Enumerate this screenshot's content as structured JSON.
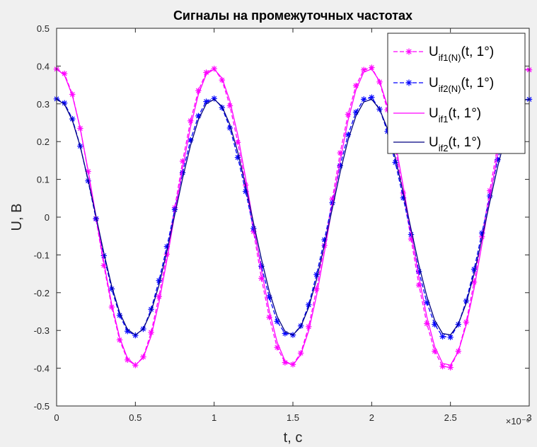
{
  "chart_data": {
    "type": "line",
    "title": "Сигналы на промежуточных частотах",
    "xlabel": "t, c",
    "ylabel": "U, B",
    "x_exponent_label": "×10⁻⁶",
    "xlim": [
      0,
      3
    ],
    "ylim": [
      -0.5,
      0.5
    ],
    "x_ticks": [
      "0",
      "0.5",
      "1",
      "1.5",
      "2",
      "2.5",
      "3"
    ],
    "x_tick_values": [
      0,
      0.5,
      1,
      1.5,
      2,
      2.5,
      3
    ],
    "y_ticks": [
      "0.5",
      "0.4",
      "0.3",
      "0.2",
      "0.1",
      "0",
      "-0.1",
      "-0.2",
      "-0.3",
      "-0.4",
      "-0.5"
    ],
    "y_tick_values": [
      0.5,
      0.4,
      0.3,
      0.2,
      0.1,
      0,
      -0.1,
      -0.2,
      -0.3,
      -0.4,
      -0.5
    ],
    "grid": false,
    "legend_position": "top-right",
    "colors": {
      "magenta": "#ff00ff",
      "blue": "#0000ff",
      "navy": "#000080",
      "axes_bg": "#ffffff",
      "figure_bg": "#f0f0f0"
    },
    "series": [
      {
        "legend_main": "U",
        "legend_sub": "if1(N)",
        "legend_tail": "(t, 1°)",
        "color": "#ff00ff",
        "line": "dashed",
        "marker": "asterisk",
        "x": [
          0,
          0.05,
          0.1,
          0.15,
          0.2,
          0.25,
          0.3,
          0.35,
          0.4,
          0.45,
          0.5,
          0.55,
          0.6,
          0.65,
          0.7,
          0.75,
          0.8,
          0.85,
          0.9,
          0.95,
          1,
          1.05,
          1.1,
          1.15,
          1.2,
          1.25,
          1.3,
          1.35,
          1.4,
          1.45,
          1.5,
          1.55,
          1.6,
          1.65,
          1.7,
          1.75,
          1.8,
          1.85,
          1.9,
          1.95,
          2,
          2.05,
          2.1,
          2.15,
          2.2,
          2.25,
          2.3,
          2.35,
          2.4,
          2.45,
          2.5,
          2.55,
          2.6,
          2.65,
          2.7,
          2.75,
          2.8,
          2.85,
          2.9,
          2.95,
          3
        ],
        "y": [
          0.392,
          0.38,
          0.325,
          0.235,
          0.121,
          -0.005,
          -0.128,
          -0.238,
          -0.325,
          -0.378,
          -0.392,
          -0.37,
          -0.305,
          -0.21,
          -0.098,
          0.025,
          0.148,
          0.255,
          0.335,
          0.383,
          0.393,
          0.363,
          0.295,
          0.198,
          0.085,
          -0.038,
          -0.162,
          -0.265,
          -0.345,
          -0.385,
          -0.39,
          -0.36,
          -0.29,
          -0.19,
          -0.075,
          0.048,
          0.17,
          0.272,
          0.348,
          0.39,
          0.396,
          0.358,
          0.284,
          0.181,
          0.064,
          -0.058,
          -0.18,
          -0.282,
          -0.355,
          -0.395,
          -0.398,
          -0.355,
          -0.278,
          -0.172,
          -0.052,
          0.07,
          0.19,
          0.29,
          0.36,
          0.388,
          0.39
        ]
      },
      {
        "legend_main": "U",
        "legend_sub": "if2(N)",
        "legend_tail": "(t, 1°)",
        "color": "#0000ff",
        "line": "dashed",
        "marker": "asterisk",
        "x": [
          0,
          0.05,
          0.1,
          0.15,
          0.2,
          0.25,
          0.3,
          0.35,
          0.4,
          0.45,
          0.5,
          0.55,
          0.6,
          0.65,
          0.7,
          0.75,
          0.8,
          0.85,
          0.9,
          0.95,
          1,
          1.05,
          1.1,
          1.15,
          1.2,
          1.25,
          1.3,
          1.35,
          1.4,
          1.45,
          1.5,
          1.55,
          1.6,
          1.65,
          1.7,
          1.75,
          1.8,
          1.85,
          1.9,
          1.95,
          2,
          2.05,
          2.1,
          2.15,
          2.2,
          2.25,
          2.3,
          2.35,
          2.4,
          2.45,
          2.5,
          2.55,
          2.6,
          2.65,
          2.7,
          2.75,
          2.8,
          2.85,
          2.9,
          2.95,
          3
        ],
        "y": [
          0.313,
          0.302,
          0.26,
          0.188,
          0.096,
          -0.004,
          -0.102,
          -0.19,
          -0.26,
          -0.302,
          -0.313,
          -0.296,
          -0.244,
          -0.168,
          -0.078,
          0.02,
          0.118,
          0.204,
          0.268,
          0.306,
          0.314,
          0.29,
          0.236,
          0.158,
          0.068,
          -0.03,
          -0.13,
          -0.212,
          -0.276,
          -0.308,
          -0.312,
          -0.288,
          -0.232,
          -0.152,
          -0.06,
          0.038,
          0.136,
          0.218,
          0.278,
          0.312,
          0.317,
          0.286,
          0.227,
          0.145,
          0.051,
          -0.046,
          -0.144,
          -0.226,
          -0.284,
          -0.316,
          -0.318,
          -0.284,
          -0.222,
          -0.138,
          -0.042,
          0.056,
          0.152,
          0.232,
          0.288,
          0.31,
          0.312
        ]
      },
      {
        "legend_main": "U",
        "legend_sub": "if1",
        "legend_tail": "(t, 1°)",
        "color": "#ff00ff",
        "line": "solid",
        "marker": "none",
        "x": [
          0,
          0.05,
          0.1,
          0.15,
          0.2,
          0.25,
          0.3,
          0.35,
          0.4,
          0.45,
          0.5,
          0.55,
          0.6,
          0.65,
          0.7,
          0.75,
          0.8,
          0.85,
          0.9,
          0.95,
          1,
          1.05,
          1.1,
          1.15,
          1.2,
          1.25,
          1.3,
          1.35,
          1.4,
          1.45,
          1.5,
          1.55,
          1.6,
          1.65,
          1.7,
          1.75,
          1.8,
          1.85,
          1.9,
          1.95,
          2,
          2.05,
          2.1,
          2.15,
          2.2,
          2.25,
          2.3,
          2.35,
          2.4,
          2.45,
          2.5,
          2.55,
          2.6,
          2.65,
          2.7,
          2.75,
          2.8,
          2.85,
          2.9,
          2.95,
          3
        ],
        "y": [
          0.392,
          0.376,
          0.322,
          0.235,
          0.124,
          0.002,
          -0.12,
          -0.231,
          -0.319,
          -0.374,
          -0.392,
          -0.372,
          -0.315,
          -0.226,
          -0.114,
          0.008,
          0.13,
          0.239,
          0.325,
          0.378,
          0.392,
          0.368,
          0.308,
          0.217,
          0.103,
          -0.019,
          -0.14,
          -0.248,
          -0.331,
          -0.381,
          -0.392,
          -0.364,
          -0.301,
          -0.208,
          -0.093,
          0.029,
          0.149,
          0.256,
          0.337,
          0.384,
          0.392,
          0.36,
          0.294,
          0.198,
          0.082,
          -0.04,
          -0.159,
          -0.264,
          -0.343,
          -0.387,
          -0.392,
          -0.356,
          -0.286,
          -0.189,
          -0.072,
          0.05,
          0.168,
          0.271,
          0.348,
          0.389,
          0.392
        ]
      },
      {
        "legend_main": "U",
        "legend_sub": "if2",
        "legend_tail": "(t, 1°)",
        "color": "#000080",
        "line": "solid",
        "marker": "none",
        "x": [
          0,
          0.05,
          0.1,
          0.15,
          0.2,
          0.25,
          0.3,
          0.35,
          0.4,
          0.45,
          0.5,
          0.55,
          0.6,
          0.65,
          0.7,
          0.75,
          0.8,
          0.85,
          0.9,
          0.95,
          1,
          1.05,
          1.1,
          1.15,
          1.2,
          1.25,
          1.3,
          1.35,
          1.4,
          1.45,
          1.5,
          1.55,
          1.6,
          1.65,
          1.7,
          1.75,
          1.8,
          1.85,
          1.9,
          1.95,
          2,
          2.05,
          2.1,
          2.15,
          2.2,
          2.25,
          2.3,
          2.35,
          2.4,
          2.45,
          2.5,
          2.55,
          2.6,
          2.65,
          2.7,
          2.75,
          2.8,
          2.85,
          2.9,
          2.95,
          3
        ],
        "y": [
          0.312,
          0.299,
          0.256,
          0.187,
          0.099,
          0.002,
          -0.095,
          -0.183,
          -0.253,
          -0.297,
          -0.312,
          -0.296,
          -0.25,
          -0.18,
          -0.09,
          0.006,
          0.103,
          0.19,
          0.258,
          0.3,
          0.312,
          0.293,
          0.245,
          0.172,
          0.082,
          -0.015,
          -0.111,
          -0.197,
          -0.263,
          -0.303,
          -0.312,
          -0.29,
          -0.239,
          -0.165,
          -0.074,
          0.023,
          0.119,
          0.204,
          0.268,
          0.305,
          0.312,
          0.286,
          0.234,
          0.157,
          0.065,
          -0.032,
          -0.127,
          -0.21,
          -0.273,
          -0.308,
          -0.312,
          -0.283,
          -0.228,
          -0.15,
          -0.057,
          0.04,
          0.134,
          0.216,
          0.277,
          0.309,
          0.312
        ]
      }
    ]
  }
}
